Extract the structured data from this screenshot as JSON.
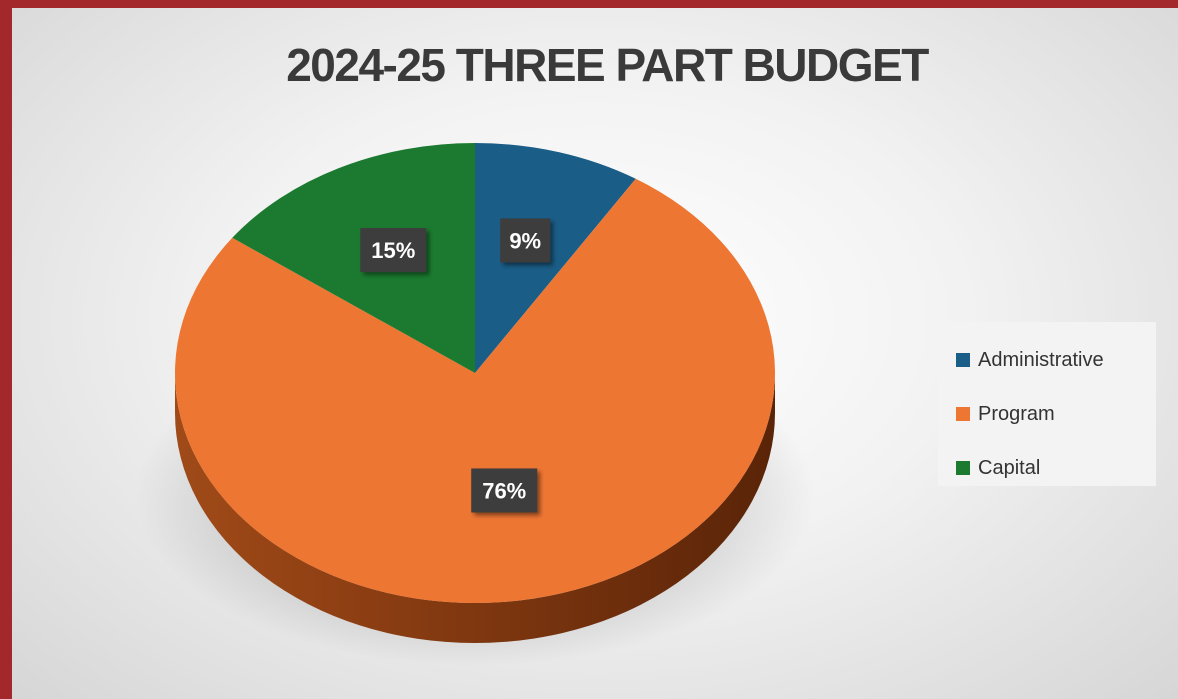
{
  "chart_data": {
    "type": "pie",
    "title": "2024-25 THREE PART BUDGET",
    "slices": [
      {
        "name": "Administrative",
        "value": 9,
        "label": "9%",
        "color": "#1a5d87"
      },
      {
        "name": "Program",
        "value": 76,
        "label": "76%",
        "color": "#ee7633"
      },
      {
        "name": "Capital",
        "value": 15,
        "label": "15%",
        "color": "#1b7a2f"
      }
    ],
    "legend_placement": "right",
    "style": "3d"
  }
}
